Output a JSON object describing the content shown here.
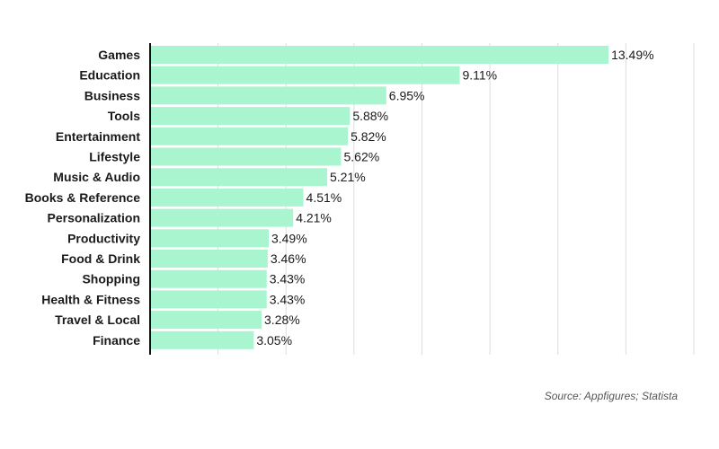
{
  "colors": {
    "bar": "#a8f5cf",
    "grid": "#dddddd",
    "axis": "#111111",
    "text": "#1a1a1a"
  },
  "source": "Source: Appfigures; Statista",
  "chart_data": {
    "type": "bar",
    "orientation": "horizontal",
    "title": "",
    "xlabel": "",
    "ylabel": "",
    "xlim": [
      0,
      16
    ],
    "grid": true,
    "value_suffix": "%",
    "categories": [
      "Games",
      "Education",
      "Business",
      "Tools",
      "Entertainment",
      "Lifestyle",
      "Music & Audio",
      "Books & Reference",
      "Personalization",
      "Productivity",
      "Food & Drink",
      "Shopping",
      "Health & Fitness",
      "Travel & Local",
      "Finance"
    ],
    "values": [
      13.49,
      9.11,
      6.95,
      5.88,
      5.82,
      5.62,
      5.21,
      4.51,
      4.21,
      3.49,
      3.46,
      3.43,
      3.43,
      3.28,
      3.05
    ],
    "data_labels": [
      "13.49%",
      "9.11%",
      "6.95%",
      "5.88%",
      "5.82%",
      "5.62%",
      "5.21%",
      "4.51%",
      "4.21%",
      "3.49%",
      "3.46%",
      "3.43%",
      "3.43%",
      "3.28%",
      "3.05%"
    ]
  }
}
